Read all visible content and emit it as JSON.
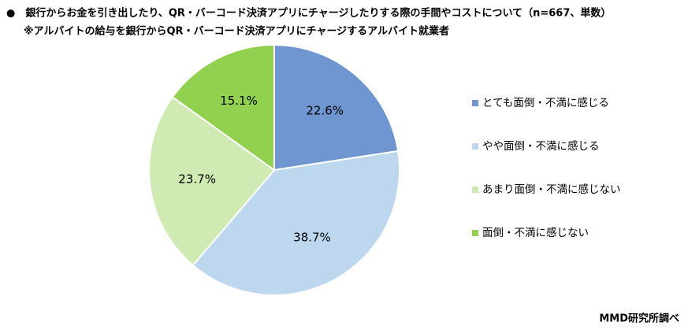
{
  "chart_data": {
    "type": "pie",
    "title": "●　銀行からお金を引き出したり、QR・バーコード決済アプリにチャージしたりする際の手間やコストについて（n=667、単数）",
    "subtitle": "※アルバイトの給与を銀行からQR・バーコード決済アプリにチャージするアルバイト就業者",
    "categories": [
      "とても面倒・不満に感じる",
      "やや面倒・不満に感じる",
      "あまり面倒・不満に感じない",
      "面倒・不満に感じない"
    ],
    "values": [
      22.6,
      38.7,
      23.7,
      15.1
    ],
    "value_labels": [
      "22.6%",
      "38.7%",
      "23.7%",
      "15.1%"
    ],
    "colors": [
      "#7096d1",
      "#bdd7ee",
      "#d0eab3",
      "#92d050"
    ],
    "legend": "right",
    "source": "MMD研究所調べ"
  }
}
